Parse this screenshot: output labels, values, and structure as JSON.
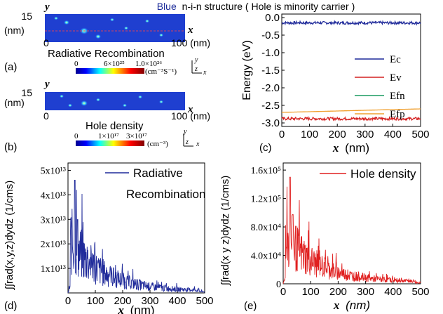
{
  "figure": {
    "title_blue": "Blue",
    "title_rest": "n-i-n structure ( Hole is minority carrier )",
    "title_blue_color": "#1a2a9a"
  },
  "panel_a": {
    "label": "(a)",
    "y_axis": "y",
    "x_axis": "x",
    "y_tick": "15",
    "y_unit": "(nm)",
    "x_tick_0": "0",
    "x_tick_100": "100 (nm)",
    "title": "Radiative Recombination",
    "cb_min": "0",
    "cb_mid": "6×10²⁵",
    "cb_max": "1.0×10²⁶",
    "cb_unit": "(cm⁻³S⁻¹)",
    "axes_y": "y",
    "axes_z": "z",
    "axes_x": "x"
  },
  "panel_b": {
    "label": "(b)",
    "y_axis": "y",
    "x_axis": "x",
    "y_tick": "15",
    "y_unit": "(nm)",
    "x_tick_0": "0",
    "x_tick_100": "100 (nm)",
    "title": "Hole density",
    "cb_min": "0",
    "cb_mid": "1×10¹⁷",
    "cb_max": "3×10¹⁷",
    "cb_unit": "(cm⁻³)",
    "axes_y": "y",
    "axes_z": "z",
    "axes_x": "x"
  },
  "chart_data": [
    {
      "id": "c",
      "type": "line",
      "panel_label": "(c)",
      "xlabel": "x (nm)",
      "ylabel": "Energy (eV)",
      "xlim": [
        0,
        500
      ],
      "ylim": [
        -3.1,
        0.1
      ],
      "x_ticks": [
        0,
        100,
        200,
        300,
        400,
        500
      ],
      "y_ticks": [
        "0.0",
        "-0.5",
        "-1.0",
        "-1.5",
        "-2.0",
        "-2.5",
        "-3.0"
      ],
      "y_tick_values": [
        0.0,
        -0.5,
        -1.0,
        -1.5,
        -2.0,
        -2.5,
        -3.0
      ],
      "series": [
        {
          "name": "Ec",
          "color": "#1f2a9a",
          "values_start": -0.15,
          "values_end": -0.15
        },
        {
          "name": "Ev",
          "color": "#d42020",
          "values_start": -2.88,
          "values_end": -2.88
        },
        {
          "name": "Efn",
          "color": "#1a9a60",
          "values_start": 0.05,
          "values_end": 0.05
        },
        {
          "name": "Efp",
          "color": "#f0a030",
          "values_start": -2.7,
          "values_end": -2.6
        }
      ]
    },
    {
      "id": "d",
      "type": "line",
      "panel_label": "(d)",
      "xlabel": "x (nm)",
      "ylabel": "∫∫rad(x,y,z)dydz (1/cms)",
      "xlim": [
        0,
        500
      ],
      "ylim": [
        0,
        53000000000000.0
      ],
      "x_ticks": [
        0,
        100,
        200,
        300,
        400,
        500
      ],
      "y_ticks": [
        "1x10¹³",
        "2x10¹³",
        "3x10¹³",
        "4x10¹³",
        "5x10¹³"
      ],
      "y_tick_values": [
        10000000000000.0,
        20000000000000.0,
        30000000000000.0,
        40000000000000.0,
        50000000000000.0
      ],
      "series": [
        {
          "name": "Radiative Recombination",
          "legend_line2": "Recombination",
          "legend_line1": "Radiative",
          "color": "#1f2a9a",
          "peak_x": 25,
          "peak_y": 46000000000000.0
        }
      ]
    },
    {
      "id": "e",
      "type": "line",
      "panel_label": "(e)",
      "xlabel": "x (nm)",
      "ylabel": "∫∫rad(x y z)dydz (1/cms)",
      "xlim": [
        0,
        500
      ],
      "ylim": [
        0,
        170000.0
      ],
      "x_ticks": [
        0,
        100,
        200,
        300,
        400,
        500
      ],
      "y_ticks": [
        "0",
        "4.0x10⁴",
        "8.0x10⁴",
        "1.2x10⁵",
        "1.6x10⁵"
      ],
      "y_tick_values": [
        0,
        40000.0,
        80000.0,
        120000.0,
        160000.0
      ],
      "series": [
        {
          "name": "Hole density",
          "color": "#e02020",
          "peak_x": 25,
          "peak_y": 150000.0
        }
      ]
    }
  ]
}
